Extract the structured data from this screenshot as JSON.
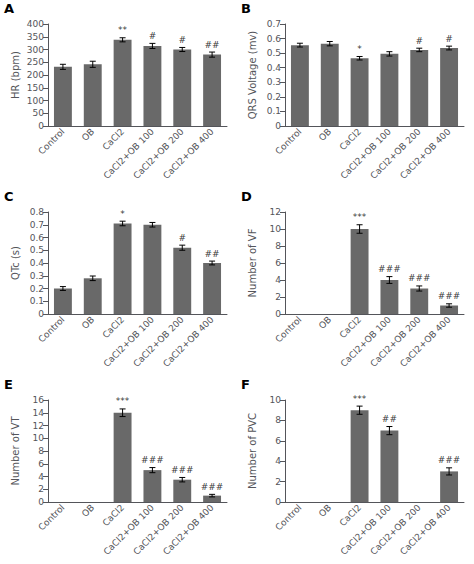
{
  "chart_data": [
    {
      "type": "bar",
      "title": "A",
      "ylabel": "HR (bpm)",
      "categories": [
        "Control",
        "OB",
        "CaCl2",
        "CaCl2+OB 100",
        "CaCl2+OB 200",
        "CaCl2+OB 400"
      ],
      "values": [
        232,
        242,
        338,
        314,
        300,
        280
      ],
      "errors": [
        10,
        12,
        8,
        10,
        8,
        10
      ],
      "annotations": [
        null,
        null,
        "**",
        "#",
        "#",
        "##"
      ],
      "color": "#696969",
      "ylim": [
        0,
        400
      ],
      "yticks": [
        0,
        50,
        100,
        150,
        200,
        250,
        300,
        350,
        400
      ],
      "grid": false
    },
    {
      "type": "bar",
      "title": "B",
      "ylabel": "QRS Voltage (mv)",
      "categories": [
        "Control",
        "OB",
        "CaCl2",
        "CaCl2+OB 100",
        "CaCl2+OB 200",
        "CaCl2+OB 400"
      ],
      "values": [
        0.555,
        0.565,
        0.465,
        0.495,
        0.522,
        0.535
      ],
      "errors": [
        0.013,
        0.015,
        0.012,
        0.015,
        0.012,
        0.013
      ],
      "annotations": [
        null,
        null,
        "*",
        null,
        "#",
        "#"
      ],
      "color": "#696969",
      "ylim": [
        0,
        0.7
      ],
      "yticks": [
        0,
        0.1,
        0.2,
        0.3,
        0.4,
        0.5,
        0.6,
        0.7
      ],
      "grid": false
    },
    {
      "type": "bar",
      "title": "C",
      "ylabel": "QTc (s)",
      "categories": [
        "Control",
        "OB",
        "CaCl2",
        "CaCl2+OB 100",
        "CaCl2+OB 200",
        "CaCl2+OB 400"
      ],
      "values": [
        0.2,
        0.28,
        0.71,
        0.7,
        0.52,
        0.4
      ],
      "errors": [
        0.015,
        0.018,
        0.018,
        0.018,
        0.02,
        0.015
      ],
      "annotations": [
        null,
        null,
        "*",
        null,
        "#",
        "##"
      ],
      "color": "#696969",
      "ylim": [
        0,
        0.8
      ],
      "yticks": [
        0,
        0.1,
        0.2,
        0.3,
        0.4,
        0.5,
        0.6,
        0.7,
        0.8
      ],
      "grid": false
    },
    {
      "type": "bar",
      "title": "D",
      "ylabel": "Number of VF",
      "categories": [
        "Control",
        "OB",
        "CaCl2",
        "CaCl2+OB 100",
        "CaCl2+OB 200",
        "CaCl2+OB 400"
      ],
      "values": [
        0,
        0,
        10,
        4,
        3,
        1
      ],
      "errors": [
        0,
        0,
        0.5,
        0.4,
        0.3,
        0.2
      ],
      "annotations": [
        null,
        null,
        "***",
        "###",
        "###",
        "###"
      ],
      "color": "#696969",
      "ylim": [
        0,
        12
      ],
      "yticks": [
        0,
        2,
        4,
        6,
        8,
        10,
        12
      ],
      "grid": false
    },
    {
      "type": "bar",
      "title": "E",
      "ylabel": "Number of VT",
      "categories": [
        "Control",
        "OB",
        "CaCl2",
        "CaCl2+OB 100",
        "CaCl2+OB 200",
        "CaCl2+OB 400"
      ],
      "values": [
        0,
        0,
        14,
        5,
        3.5,
        1
      ],
      "errors": [
        0,
        0,
        0.6,
        0.4,
        0.35,
        0.2
      ],
      "annotations": [
        null,
        null,
        "***",
        "###",
        "###",
        "###"
      ],
      "color": "#696969",
      "ylim": [
        0,
        16
      ],
      "yticks": [
        0,
        2,
        4,
        6,
        8,
        10,
        12,
        14,
        16
      ],
      "grid": false
    },
    {
      "type": "bar",
      "title": "F",
      "ylabel": "Number of PVC",
      "categories": [
        "Control",
        "OB",
        "CaCl2",
        "CaCl2+OB 100",
        "CaCl2+OB 200",
        "CaCl2+OB 400"
      ],
      "values": [
        0,
        0,
        9,
        7,
        0,
        3
      ],
      "errors": [
        0,
        0,
        0.4,
        0.4,
        0,
        0.35
      ],
      "annotations": [
        null,
        null,
        "***",
        "##",
        null,
        "###"
      ],
      "color": "#696969",
      "ylim": [
        0,
        10
      ],
      "yticks": [
        0,
        2,
        4,
        6,
        8,
        10
      ],
      "grid": false
    }
  ]
}
